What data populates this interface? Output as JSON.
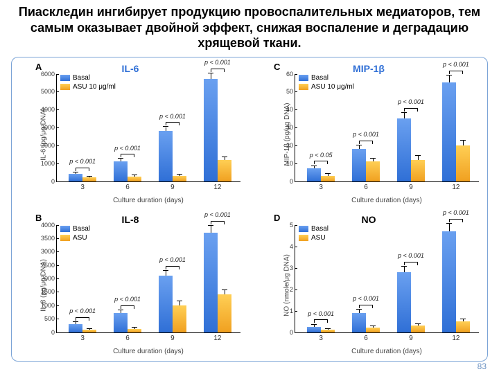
{
  "title": "Пиаскледин ингибирует продукцию провоспалительных медиаторов, тем самым оказывает двойной эффект, снижая воспаление и деградацию хрящевой ткани.",
  "page_number": "83",
  "xlabel_common": "Culture duration (days)",
  "x_categories": [
    "3",
    "6",
    "9",
    "12"
  ],
  "legend": {
    "basal": "Basal",
    "asu_a": "ASU 10 μg/ml",
    "asu_b": "ASU"
  },
  "colors": {
    "basal": "#3f78d8",
    "asu": "#f5a623",
    "border": "#7aa3d6",
    "text": "#000000",
    "pagenum": "#6b92c2"
  },
  "panels": [
    {
      "letter": "A",
      "title": "IL-6",
      "title_color": "#2f6fd6",
      "ylabel": "IL-6 (pg/μg DNA)",
      "ylim": [
        0,
        6000
      ],
      "ytick_step": 1000,
      "legend_asu": "ASU 10 μg/ml",
      "basal": [
        400,
        1100,
        2800,
        5700
      ],
      "basal_err": [
        80,
        140,
        220,
        320
      ],
      "asu": [
        200,
        250,
        300,
        1200
      ],
      "asu_err": [
        60,
        70,
        80,
        130
      ],
      "pvals": [
        "p < 0.001",
        "p < 0.001",
        "p < 0.001",
        "p < 0.001"
      ]
    },
    {
      "letter": "C",
      "title": "MIP-1β",
      "title_color": "#2f6fd6",
      "ylabel": "MIP-1β (pg/μg DNA)",
      "ylim": [
        0,
        60
      ],
      "ytick_step": 10,
      "legend_asu": "ASU 10 μg/ml",
      "basal": [
        7,
        18,
        35,
        55
      ],
      "basal_err": [
        1.5,
        2,
        3,
        4
      ],
      "asu": [
        3,
        11,
        12,
        20
      ],
      "asu_err": [
        1,
        1.5,
        2,
        2.5
      ],
      "pvals": [
        "p < 0.05",
        "p < 0.001",
        "p < 0.001",
        "p < 0.001"
      ]
    },
    {
      "letter": "B",
      "title": "IL-8",
      "title_color": "#000000",
      "ylabel": "IL-8 (pg/μg DNA)",
      "ylim": [
        0,
        4000
      ],
      "ytick_step": 500,
      "legend_asu": "ASU",
      "basal": [
        300,
        700,
        2100,
        3700
      ],
      "basal_err": [
        70,
        120,
        180,
        260
      ],
      "asu": [
        80,
        120,
        1000,
        1400
      ],
      "asu_err": [
        40,
        50,
        140,
        170
      ],
      "pvals": [
        "p < 0.001",
        "p < 0.001",
        "p < 0.001",
        "p < 0.001"
      ]
    },
    {
      "letter": "D",
      "title": "NO",
      "title_color": "#000000",
      "ylabel": "NO (nmole/μg DNA)",
      "ylim": [
        0,
        5
      ],
      "ytick_step": 1,
      "legend_asu": "ASU",
      "basal": [
        0.25,
        0.9,
        2.8,
        4.7
      ],
      "basal_err": [
        0.1,
        0.15,
        0.25,
        0.35
      ],
      "asu": [
        0.1,
        0.2,
        0.3,
        0.5
      ],
      "asu_err": [
        0.05,
        0.07,
        0.08,
        0.1
      ],
      "pvals": [
        "p < 0.001",
        "p < 0.001",
        "p < 0.001",
        "p < 0.001"
      ]
    }
  ]
}
